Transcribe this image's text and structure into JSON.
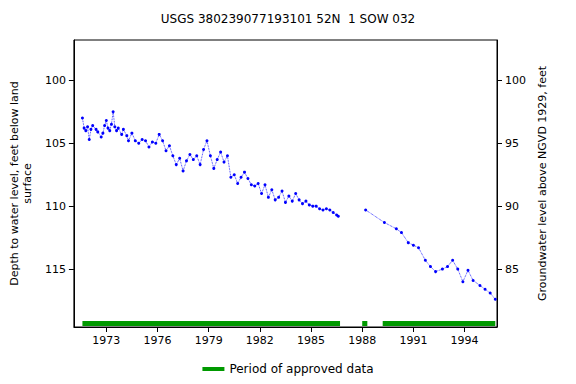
{
  "chart_data": {
    "type": "line",
    "title": "USGS 380239077193101 52N  1 SOW 032",
    "y_label": "Depth to water level, feet below land\nsurface",
    "y2_label": "Groundwater level above NGVD 1929, feet",
    "xlim": [
      1971.1,
      1995.9
    ],
    "xticks": [
      1973,
      1976,
      1979,
      1982,
      1985,
      1988,
      1991,
      1994
    ],
    "ylim": [
      96.8,
      119.6
    ],
    "yticks": [
      100,
      105,
      110,
      115
    ],
    "y2lim": [
      80.4,
      103.2
    ],
    "y2ticks": [
      85,
      90,
      95,
      100
    ],
    "grid": false,
    "legend": "bottom",
    "series": [
      {
        "color": "#0000ff",
        "marker": "circle",
        "line_style": "dotted",
        "x": [
          1971.6,
          1971.7,
          1971.8,
          1971.9,
          1972.0,
          1972.1,
          1972.2,
          1972.4,
          1972.5,
          1972.7,
          1972.8,
          1972.9,
          1973.0,
          1973.1,
          1973.2,
          1973.3,
          1973.4,
          1973.5,
          1973.6,
          1973.7,
          1973.9,
          1974.0,
          1974.2,
          1974.3,
          1974.5,
          1974.7,
          1974.9,
          1975.1,
          1975.3,
          1975.5,
          1975.7,
          1975.9,
          1976.1,
          1976.3,
          1976.5,
          1976.7,
          1976.9,
          1977.1,
          1977.3,
          1977.5,
          1977.7,
          1977.9,
          1978.1,
          1978.3,
          1978.5,
          1978.7,
          1978.9,
          1979.1,
          1979.3,
          1979.5,
          1979.7,
          1979.9,
          1980.1,
          1980.3,
          1980.5,
          1980.7,
          1980.9,
          1981.1,
          1981.3,
          1981.5,
          1981.7,
          1981.9,
          1982.1,
          1982.3,
          1982.5,
          1982.7,
          1982.9,
          1983.1,
          1983.3,
          1983.5,
          1983.7,
          1983.9,
          1984.1,
          1984.3,
          1984.5,
          1984.7,
          1984.9,
          1985.1,
          1985.3,
          1985.5,
          1985.7,
          1985.9,
          1986.1,
          1986.3,
          1986.5,
          1986.6,
          1987.3,
          1988.2,
          1989.3,
          1990.0,
          1990.3,
          1990.7,
          1991.0,
          1991.3,
          1991.7,
          1992.0,
          1992.3,
          1992.7,
          1993.0,
          1993.3,
          1993.6,
          1993.9,
          1994.2,
          1994.5,
          1994.9,
          1995.2,
          1995.5,
          1995.8
        ],
        "values": [
          103.0,
          103.8,
          104.0,
          103.7,
          104.7,
          103.9,
          103.6,
          103.9,
          104.1,
          104.5,
          104.2,
          103.6,
          103.2,
          103.8,
          104.0,
          103.5,
          102.5,
          103.7,
          104.0,
          103.8,
          104.3,
          103.9,
          104.4,
          104.8,
          104.2,
          104.8,
          105.0,
          104.7,
          104.8,
          105.3,
          104.9,
          105.0,
          104.3,
          104.8,
          105.6,
          105.2,
          106.0,
          106.7,
          106.2,
          107.2,
          106.4,
          105.9,
          106.3,
          106.0,
          106.7,
          105.5,
          104.8,
          106.0,
          107.0,
          106.3,
          105.7,
          106.5,
          106.0,
          107.7,
          107.5,
          108.2,
          107.7,
          107.3,
          107.8,
          108.3,
          108.4,
          108.2,
          109.0,
          108.3,
          109.3,
          108.7,
          109.5,
          109.3,
          108.8,
          109.7,
          109.2,
          109.6,
          109.0,
          109.5,
          109.8,
          109.6,
          109.9,
          110.0,
          110.0,
          110.2,
          110.3,
          110.2,
          110.3,
          110.5,
          110.7,
          110.8,
          null,
          110.3,
          111.3,
          111.8,
          112.1,
          112.9,
          113.1,
          113.3,
          114.3,
          114.8,
          115.2,
          115.0,
          114.8,
          114.3,
          115.0,
          116.0,
          115.1,
          115.9,
          116.3,
          116.6,
          116.9,
          117.4
        ]
      }
    ],
    "approved_periods": {
      "name": "Period of approved data",
      "color": "#009900",
      "ranges": [
        [
          1971.6,
          1986.7
        ],
        [
          1988.0,
          1988.3
        ],
        [
          1989.2,
          1995.8
        ]
      ]
    }
  }
}
